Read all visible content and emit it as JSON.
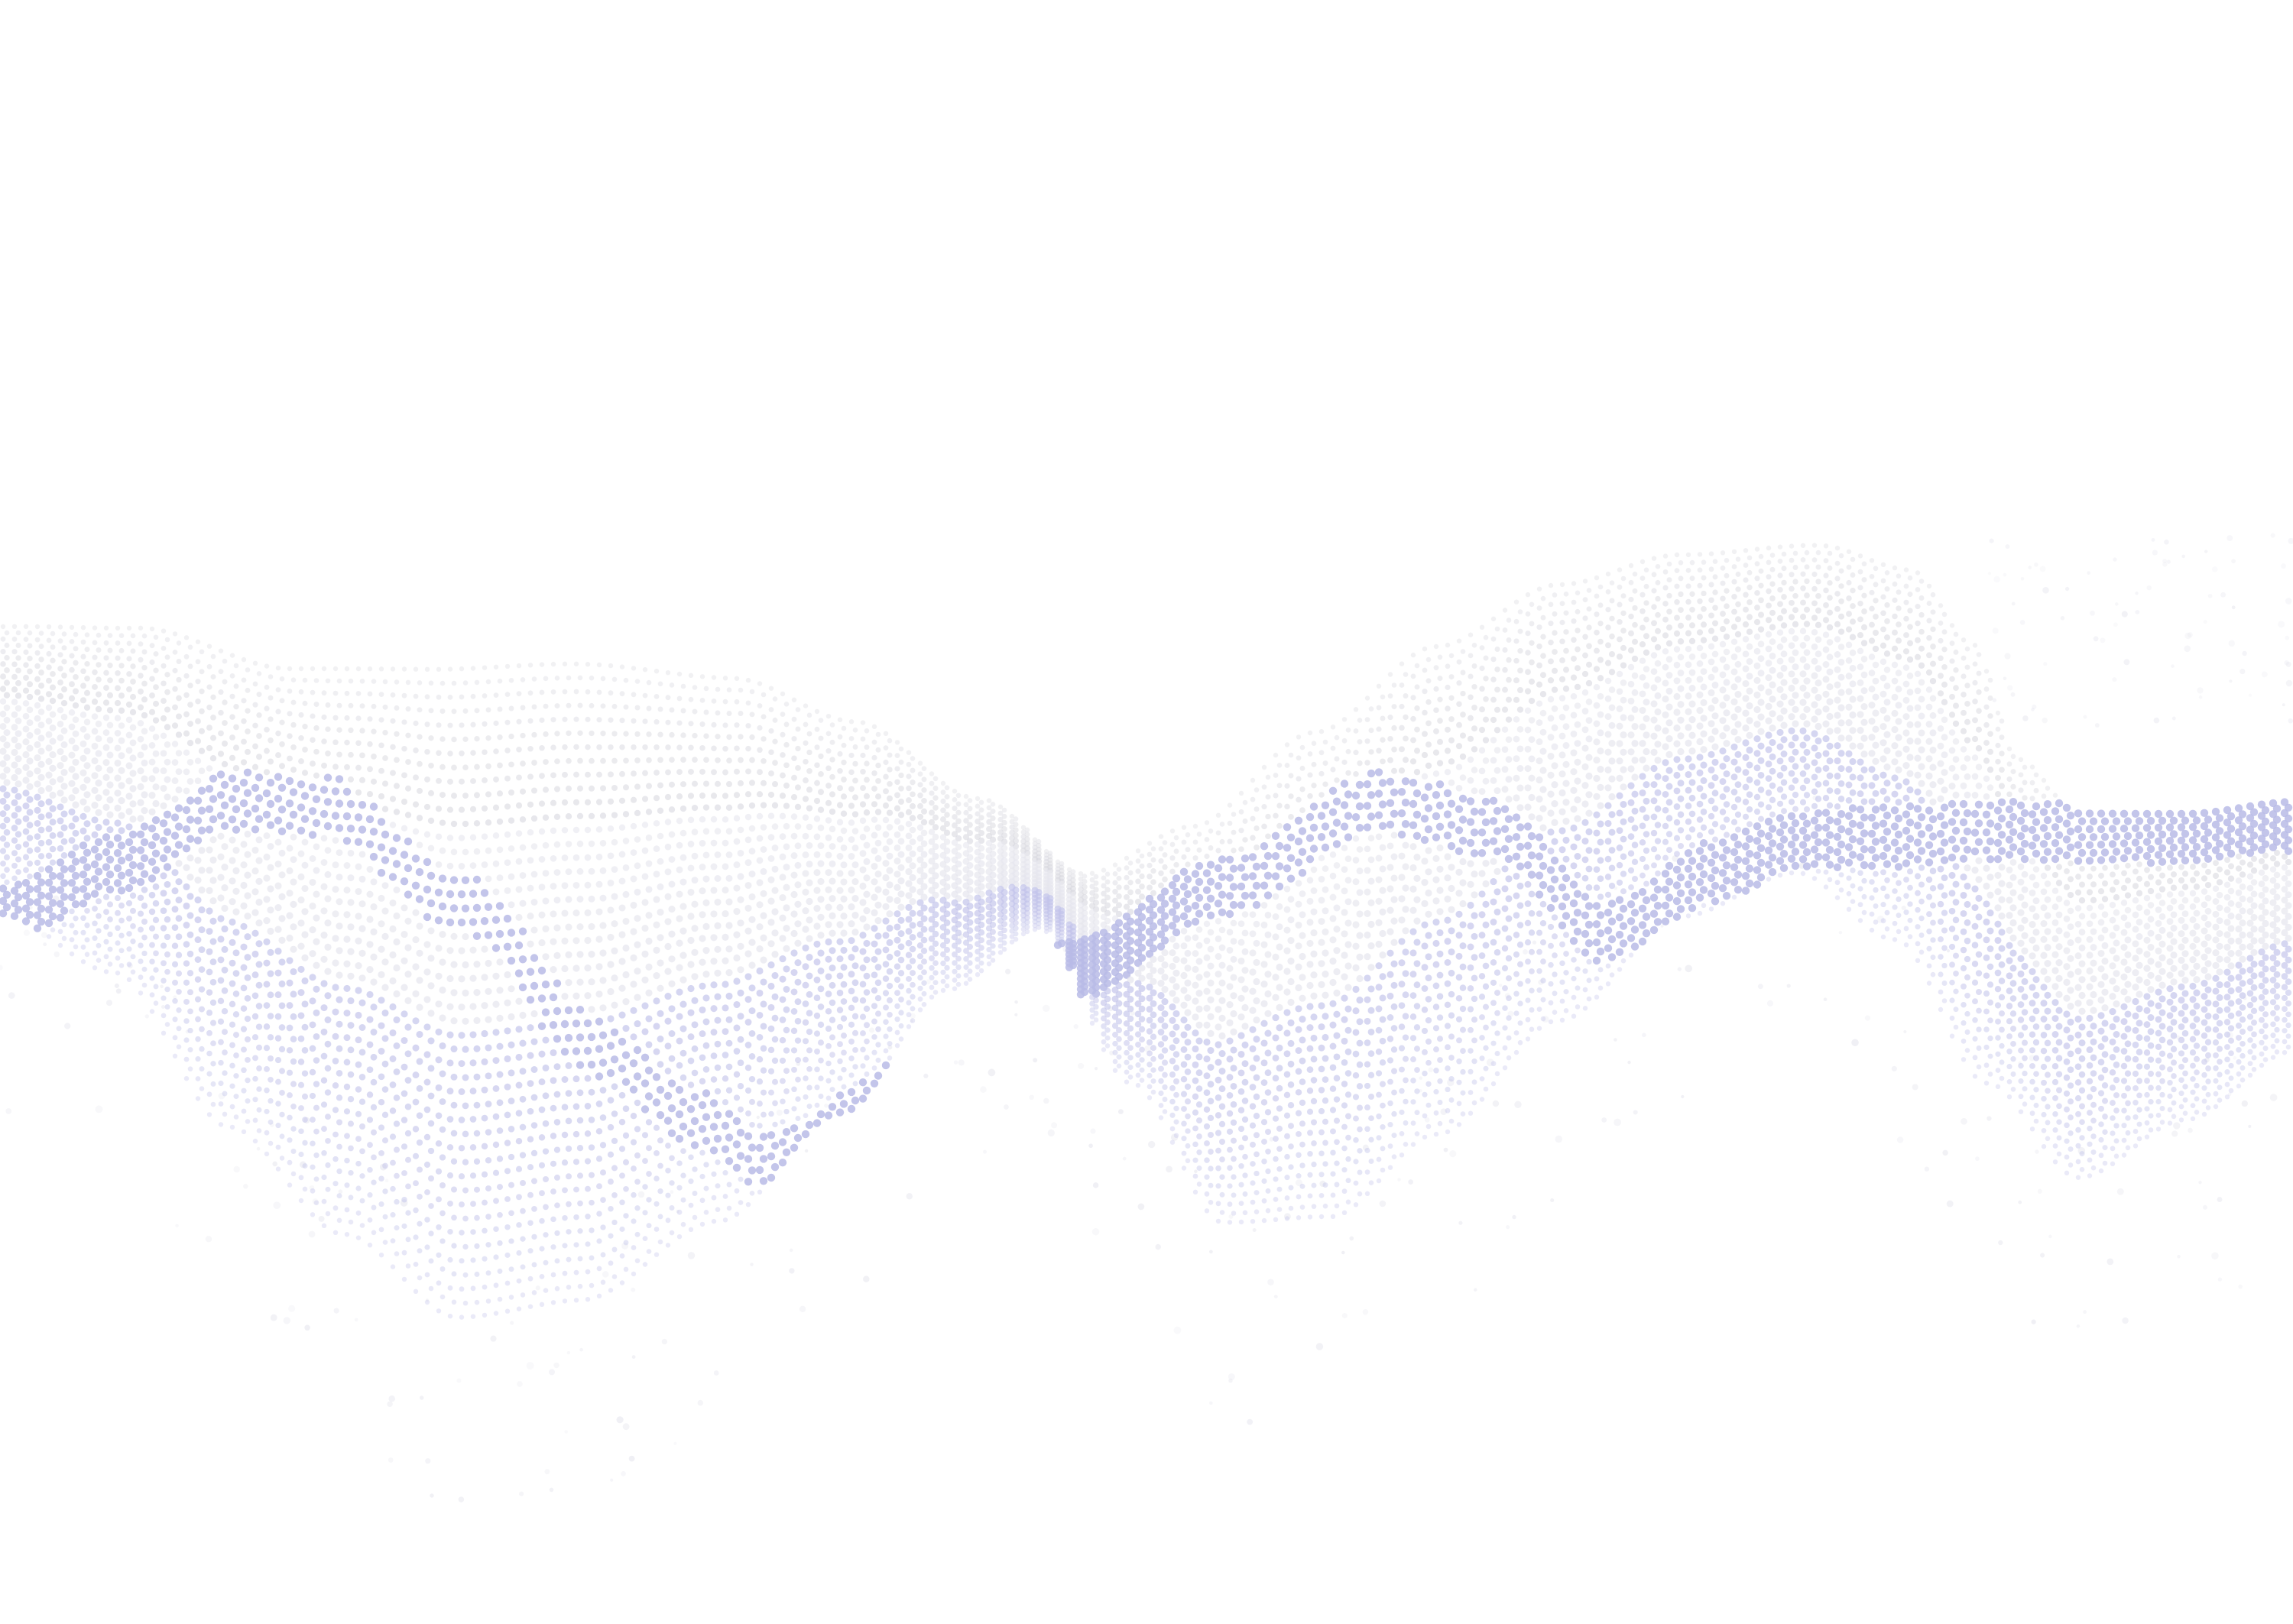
{
  "artwork": {
    "kind": "abstract dotted wave",
    "background_color": "#ffffff",
    "palette": {
      "dot_light": "#e6e6ee",
      "dot_gray": "#d7d7de",
      "dot_lavender": "#c2c3ea",
      "dot_highlight": "#b9bbe6"
    }
  }
}
